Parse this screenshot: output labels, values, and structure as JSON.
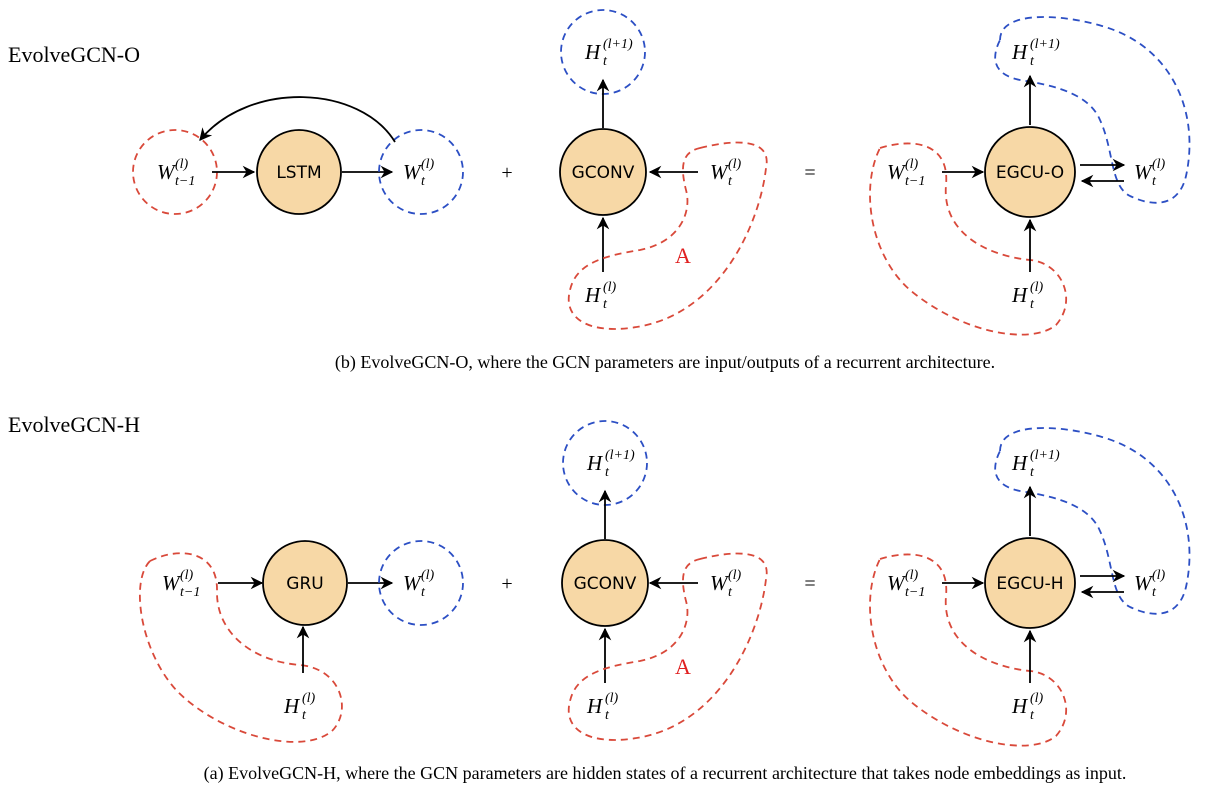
{
  "panels": [
    {
      "title": "EvolveGCN-O",
      "units": {
        "rnn": "LSTM",
        "gconv": "GCONV",
        "egcu": "EGCU-O"
      },
      "operators": {
        "plus": "+",
        "equals": "="
      },
      "annotation": "A",
      "caption": "(b) EvolveGCN-O, where the GCN parameters are input/outputs of a recurrent architecture."
    },
    {
      "title": "EvolveGCN-H",
      "units": {
        "rnn": "GRU",
        "gconv": "GCONV",
        "egcu": "EGCU-H"
      },
      "operators": {
        "plus": "+",
        "equals": "="
      },
      "annotation": "A",
      "caption": "(a) EvolveGCN-H, where the GCN parameters are hidden states of a recurrent architecture that takes node embeddings as input."
    }
  ],
  "symbols": {
    "w_prev": {
      "base": "W",
      "sup": "(l)",
      "sub": "t−1"
    },
    "w_t": {
      "base": "W",
      "sup": "(l)",
      "sub": "t"
    },
    "h_t": {
      "base": "H",
      "sup": "(l)",
      "sub": "t"
    },
    "h_next": {
      "base": "H",
      "sup": "(l+1)",
      "sub": "t"
    }
  }
}
